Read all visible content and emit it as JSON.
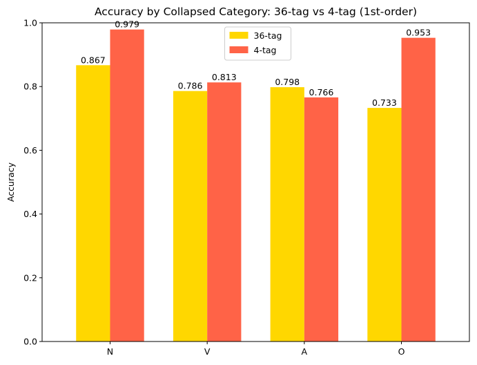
{
  "chart_data": {
    "type": "bar",
    "title": "Accuracy by Collapsed Category: 36-tag vs 4-tag (1st-order)",
    "xlabel": "",
    "ylabel": "Accuracy",
    "categories": [
      "N",
      "V",
      "A",
      "O"
    ],
    "series": [
      {
        "name": "36-tag",
        "values": [
          0.867,
          0.786,
          0.798,
          0.733
        ],
        "color": "#FFD700"
      },
      {
        "name": "4-tag",
        "values": [
          0.979,
          0.813,
          0.766,
          0.953
        ],
        "color": "#FF6347"
      }
    ],
    "ylim": [
      0,
      1.0
    ],
    "yticks": [
      "0.0",
      "0.2",
      "0.4",
      "0.6",
      "0.8",
      "1.0"
    ],
    "data_labels": true,
    "grid": false,
    "legend_position": "top-center"
  }
}
